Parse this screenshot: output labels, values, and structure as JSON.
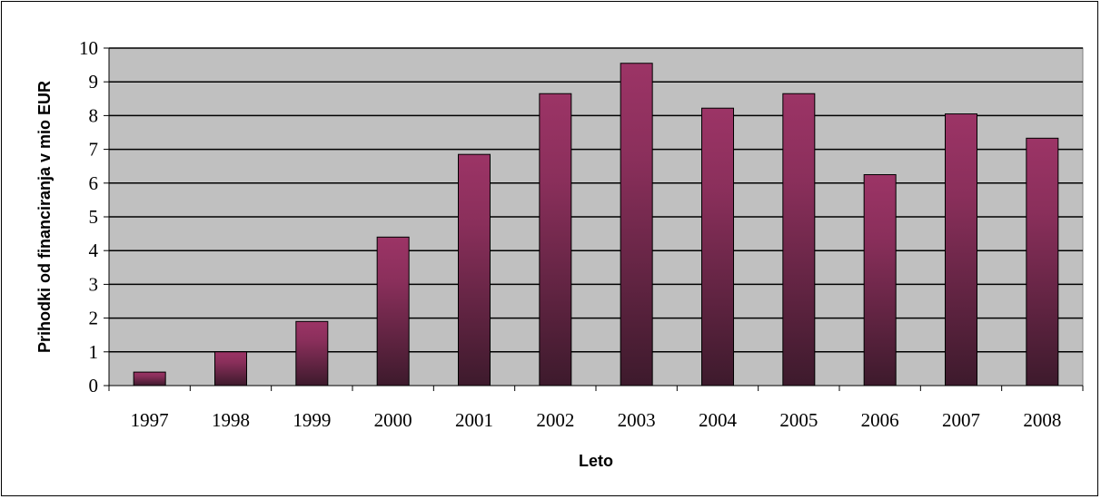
{
  "chart_data": {
    "type": "bar",
    "categories": [
      "1997",
      "1998",
      "1999",
      "2000",
      "2001",
      "2002",
      "2003",
      "2004",
      "2005",
      "2006",
      "2007",
      "2008"
    ],
    "series": [
      {
        "values": [
          0.4,
          1.0,
          1.9,
          4.4,
          6.85,
          8.65,
          9.55,
          8.22,
          8.65,
          6.25,
          8.05,
          7.33
        ]
      }
    ],
    "title": "",
    "xlabel": "Leto",
    "ylabel": "Prihodki od financiranja v mio EUR",
    "ylim": [
      0,
      10
    ],
    "yticks": [
      0,
      1,
      2,
      3,
      4,
      5,
      6,
      7,
      8,
      9,
      10
    ],
    "grid": true,
    "legend": "none",
    "colors": {
      "plot_background": "#c0c0c0",
      "bar_top": "#9c3466",
      "bar_bottom": "#3d1a2c",
      "gridline": "#000000",
      "bar_outline": "#000000"
    }
  }
}
